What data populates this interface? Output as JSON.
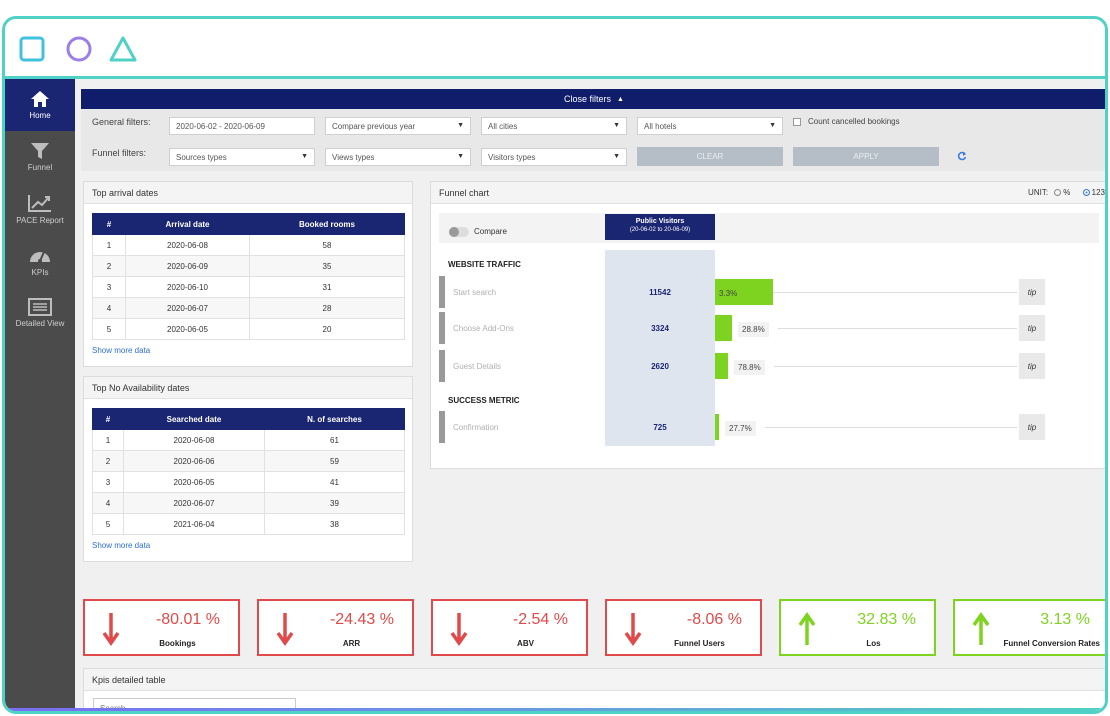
{
  "sidebar": {
    "items": [
      {
        "label": "Home",
        "icon": "home-icon",
        "active": true
      },
      {
        "label": "Funnel",
        "icon": "funnel-icon"
      },
      {
        "label": "PACE Report",
        "icon": "trend-icon"
      },
      {
        "label": "KPIs",
        "icon": "gauge-icon"
      },
      {
        "label": "Detailed View",
        "icon": "table-icon"
      }
    ]
  },
  "filters": {
    "close_label": "Close filters",
    "general_label": "General filters:",
    "funnel_label": "Funnel filters:",
    "date_range": "2020-06-02 - 2020-06-09",
    "compare": "Compare previous year",
    "cities": "All cities",
    "hotels": "All hotels",
    "cancelled_label": "Count cancelled bookings",
    "sources": "Sources types",
    "views": "Views types",
    "visitors": "Visitors types",
    "clear": "CLEAR",
    "apply": "APPLY"
  },
  "arrivals": {
    "title": "Top arrival dates",
    "headers": [
      "#",
      "Arrival date",
      "Booked rooms"
    ],
    "rows": [
      [
        "1",
        "2020-06-08",
        "58"
      ],
      [
        "2",
        "2020-06-09",
        "35"
      ],
      [
        "3",
        "2020-06-10",
        "31"
      ],
      [
        "4",
        "2020-06-07",
        "28"
      ],
      [
        "5",
        "2020-06-05",
        "20"
      ]
    ],
    "more": "Show more data"
  },
  "noavail": {
    "title": "Top No Availability dates",
    "headers": [
      "#",
      "Searched date",
      "N. of searches"
    ],
    "rows": [
      [
        "1",
        "2020-06-08",
        "61"
      ],
      [
        "2",
        "2020-06-06",
        "59"
      ],
      [
        "3",
        "2020-06-05",
        "41"
      ],
      [
        "4",
        "2020-06-07",
        "39"
      ],
      [
        "5",
        "2021-06-04",
        "38"
      ]
    ],
    "more": "Show more data"
  },
  "funnel": {
    "title": "Funnel chart",
    "unit_label": "UNIT:",
    "unit_pct": "%",
    "unit_num": "123",
    "compare": "Compare",
    "col_title": "Public Visitors",
    "col_sub": "(20-06-02 to 20-06-09)",
    "section1": "WEBSITE TRAFFIC",
    "section2": "SUCCESS METRIC",
    "tip": "tip",
    "stages": [
      {
        "name": "Start search",
        "value": "11542",
        "pct": "3.3%",
        "fill": 1.0
      },
      {
        "name": "Choose Add-Ons",
        "value": "3324",
        "pct": "28.8%",
        "fill": 0.288
      },
      {
        "name": "Guest Details",
        "value": "2620",
        "pct": "78.8%",
        "fill": 0.227
      },
      {
        "name": "Confirmation",
        "value": "725",
        "pct": "27.7%",
        "fill": 0.063
      }
    ]
  },
  "kpis": [
    {
      "value": "-80.01 %",
      "label": "Bookings",
      "trend": "down",
      "color": "#e04a4a"
    },
    {
      "value": "-24.43 %",
      "label": "ARR",
      "trend": "down",
      "color": "#e04a4a"
    },
    {
      "value": "-2.54 %",
      "label": "ABV",
      "trend": "down",
      "color": "#e04a4a"
    },
    {
      "value": "-8.06 %",
      "label": "Funnel Users",
      "trend": "down",
      "color": "#e04a4a"
    },
    {
      "value": "32.83 %",
      "label": "Los",
      "trend": "up",
      "color": "#7ed321"
    },
    {
      "value": "3.13 %",
      "label": "Funnel Conversion Rates",
      "trend": "up",
      "color": "#7ed321"
    }
  ],
  "kpi_table": {
    "title": "Kpis detailed table",
    "search_placeholder": "Search"
  },
  "colors": {
    "accent": "#1a2672",
    "frame": "#4fd1c5",
    "up": "#7ed321",
    "down": "#e04a4a"
  }
}
